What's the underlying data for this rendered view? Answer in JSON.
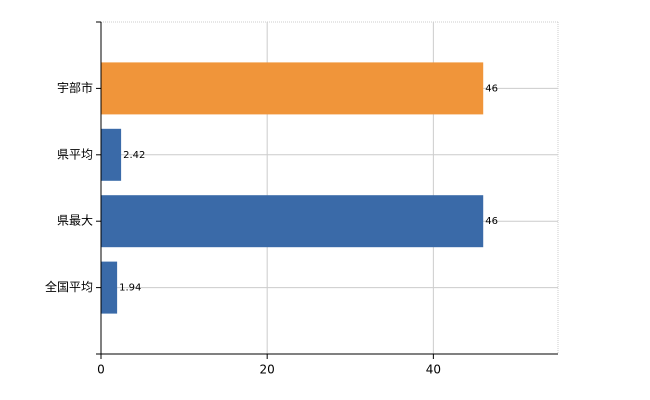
{
  "chart_data": {
    "type": "hbar",
    "categories": [
      "宇部市",
      "県平均",
      "県最大",
      "全国平均"
    ],
    "values": [
      46,
      2.42,
      46,
      1.94
    ],
    "colors": [
      "#f0953a",
      "#3a6aa8",
      "#3a6aa8",
      "#3a6aa8"
    ],
    "xlim": [
      0,
      55
    ],
    "xticks": [
      0,
      20,
      40
    ],
    "grid": true
  }
}
